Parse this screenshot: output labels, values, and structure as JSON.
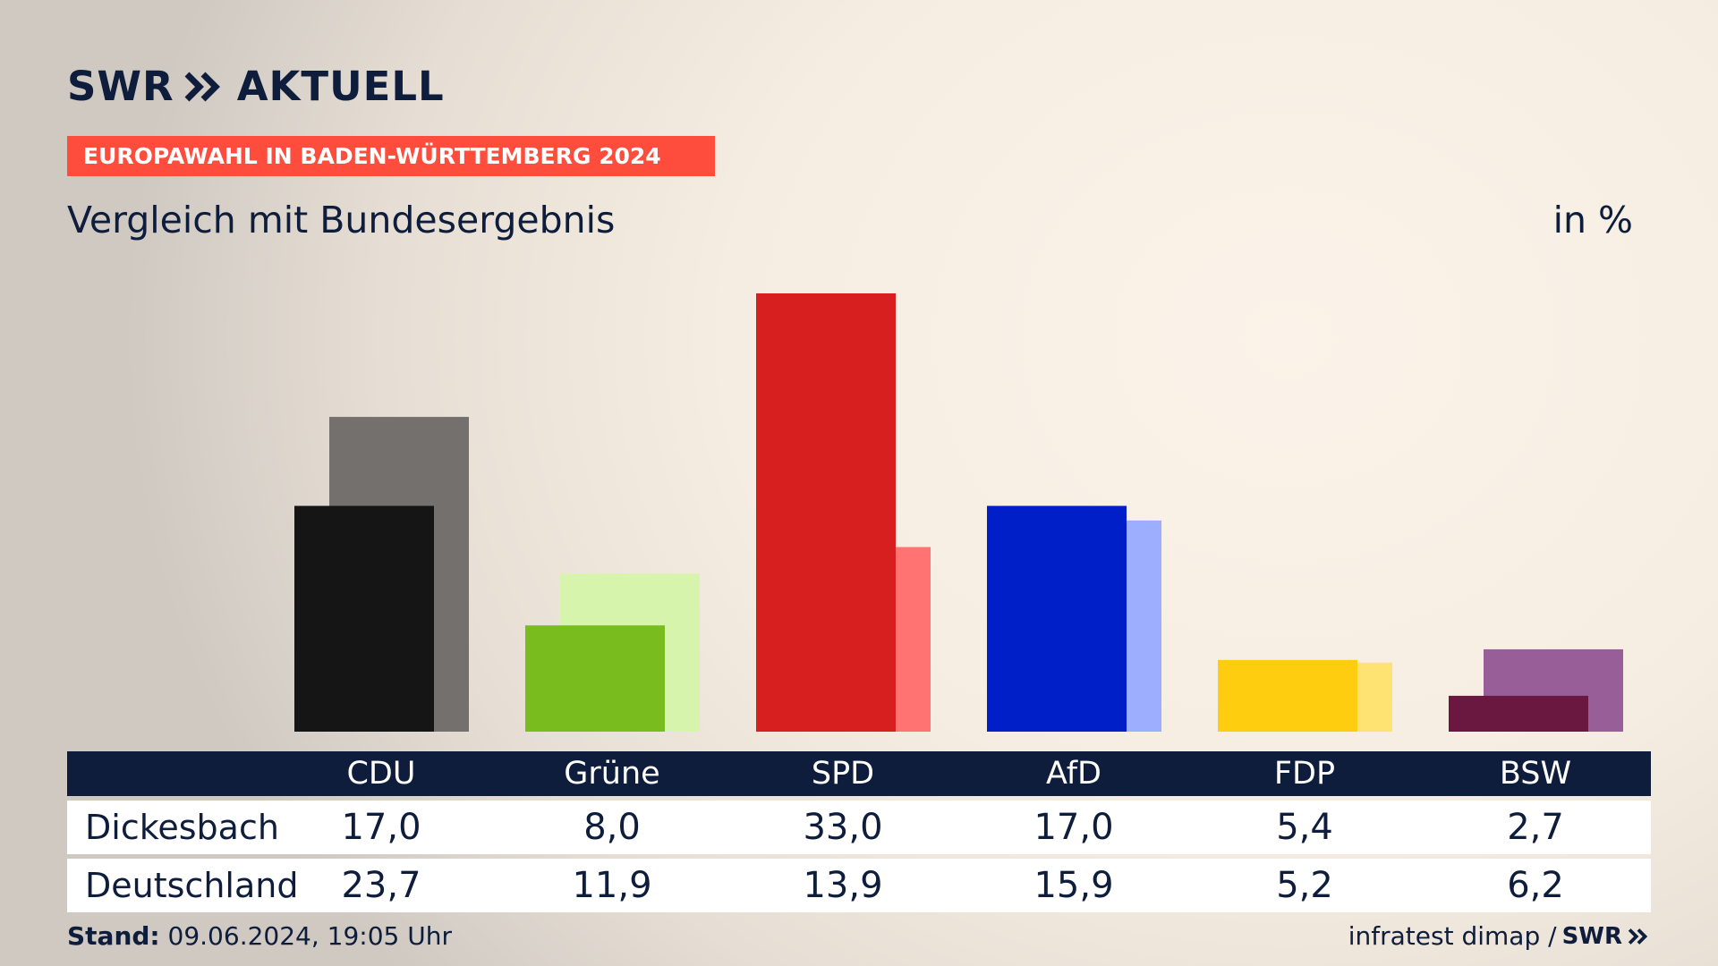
{
  "header": {
    "logo_swr": "SWR",
    "logo_aktuell": "AKTUELL",
    "banner": "EUROPAWAHL IN BADEN-WÜRTTEMBERG 2024",
    "subtitle": "Vergleich mit Bundesergebnis",
    "unit": "in %"
  },
  "chart_data": {
    "type": "bar",
    "title": "Vergleich mit Bundesergebnis",
    "unit": "in %",
    "categories": [
      "CDU",
      "Grüne",
      "SPD",
      "AfD",
      "FDP",
      "BSW"
    ],
    "series": [
      {
        "name": "Dickesbach",
        "values": [
          17.0,
          8.0,
          33.0,
          17.0,
          5.4,
          2.7
        ],
        "colors": [
          "#151515",
          "#79bc1d",
          "#d71f20",
          "#001fc8",
          "#fecd10",
          "#6a1840"
        ]
      },
      {
        "name": "Deutschland",
        "values": [
          23.7,
          11.9,
          13.9,
          15.9,
          5.2,
          6.2
        ],
        "colors": [
          "#73706e",
          "#d6f4ab",
          "#ff7472",
          "#9daefe",
          "#fee272",
          "#985e98"
        ]
      }
    ],
    "ylim": [
      0,
      33.0
    ]
  },
  "table": {
    "headers": [
      "CDU",
      "Grüne",
      "SPD",
      "AfD",
      "FDP",
      "BSW"
    ],
    "rows": [
      {
        "label": "Dickesbach",
        "values": [
          "17,0",
          "8,0",
          "33,0",
          "17,0",
          "5,4",
          "2,7"
        ]
      },
      {
        "label": "Deutschland",
        "values": [
          "23,7",
          "11,9",
          "13,9",
          "15,9",
          "5,2",
          "6,2"
        ]
      }
    ]
  },
  "footer": {
    "stand_label": "Stand:",
    "stand_value": "09.06.2024, 19:05 Uhr",
    "source": "infratest dimap /",
    "source_logo": "SWR"
  }
}
